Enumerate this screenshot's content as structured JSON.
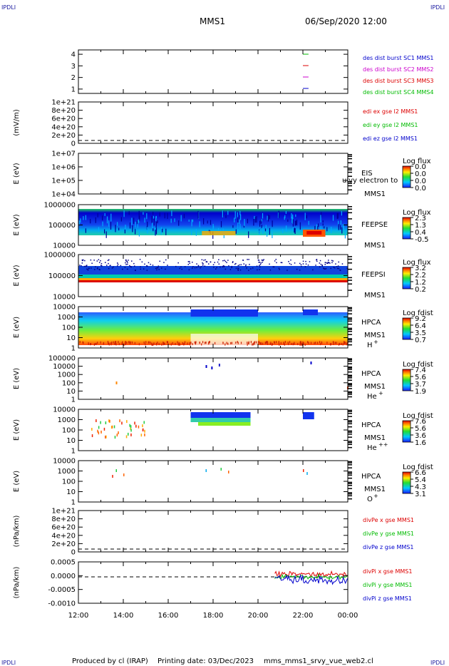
{
  "corners": {
    "tl": "IPDLI",
    "tr": "IPDLI",
    "bl": "IPDLI",
    "br": "IPDLI"
  },
  "header": {
    "mission": "MMS1",
    "datetime": "06/Sep/2020 12:00"
  },
  "footer": {
    "produced_by": "Produced by cl (IRAP)",
    "printing_date": "Printing date: 03/Dec/2023",
    "script": "mms_mms1_srvy_vue_web2.cl"
  },
  "chart_data": {
    "type": "stacked-panels",
    "x_axis": {
      "start": "12:00",
      "end": "00:00",
      "tick_labels": [
        "12:00",
        "14:00",
        "16:00",
        "18:00",
        "20:00",
        "22:00",
        "00:00"
      ]
    },
    "panels": [
      {
        "id": "burst",
        "type": "line",
        "ylabel": "",
        "y_ticks": [
          "4",
          "3",
          "2",
          "1"
        ],
        "legend": [
          {
            "text": "des dist burst SC1 MMS1",
            "color": "#0000cc"
          },
          {
            "text": "des dist burst SC2 MMS2",
            "color": "#cc00cc"
          },
          {
            "text": "des dist burst SC3 MMS3",
            "color": "#dd0000"
          },
          {
            "text": "des dist burst SC4 MMS4",
            "color": "#00bb00"
          }
        ],
        "segments": [
          {
            "sc": 4,
            "t_start": "22:00",
            "t_end": "22:15",
            "color": "#00bb00"
          },
          {
            "sc": 3,
            "t_start": "22:00",
            "t_end": "22:15",
            "color": "#dd0000"
          },
          {
            "sc": 2,
            "t_start": "22:00",
            "t_end": "22:15",
            "color": "#cc00cc"
          },
          {
            "sc": 1,
            "t_start": "22:00",
            "t_end": "22:15",
            "color": "#0000cc"
          }
        ]
      },
      {
        "id": "edi",
        "type": "line",
        "ylabel": "(mV/m)",
        "y_ticks": [
          "1e+21",
          "8e+20",
          "6e+20",
          "4e+20",
          "2e+20",
          "0"
        ],
        "legend": [
          {
            "text": "edi ex gse l2 MMS1",
            "color": "#dd0000"
          },
          {
            "text": "edi ey gse l2 MMS1",
            "color": "#00bb00"
          },
          {
            "text": "edi ez gse l2 MMS1",
            "color": "#0000cc"
          }
        ]
      },
      {
        "id": "eis",
        "type": "heatmap",
        "ylabel": "E (eV)",
        "y_ticks": [
          "1e+07",
          "1e+06",
          "1e+05",
          "1e+04"
        ],
        "side": [
          "EIS",
          "MMS1"
        ],
        "overlay_text": "ulvy electron to",
        "colorbar": {
          "title": "Log flux",
          "labels": [
            "0.0",
            "0.0",
            "0.0",
            "0.0"
          ]
        }
      },
      {
        "id": "feepse",
        "type": "heatmap",
        "ylabel": "E (eV)",
        "y_ticks": [
          "1000000",
          "100000",
          "10000"
        ],
        "side": [
          "FEEPSE",
          "MMS1"
        ],
        "colorbar": {
          "title": "Log flux",
          "labels": [
            "2.3",
            "1.3",
            "0.4",
            "-0.5"
          ]
        }
      },
      {
        "id": "feepsi",
        "type": "heatmap",
        "ylabel": "E (eV)",
        "y_ticks": [
          "1000000",
          "100000",
          "10000"
        ],
        "side": [
          "FEEPSI",
          "MMS1"
        ],
        "colorbar": {
          "title": "Log flux",
          "labels": [
            "3.2",
            "2.2",
            "1.2",
            "0.2"
          ]
        }
      },
      {
        "id": "hpca_h",
        "type": "heatmap",
        "ylabel": "E (eV)",
        "y_ticks": [
          "10000",
          "1000",
          "100",
          "10",
          "1"
        ],
        "side": [
          "HPCA",
          "MMS1"
        ],
        "species": "H",
        "charge": "+",
        "colorbar": {
          "title": "Log fdist",
          "labels": [
            "9.2",
            "6.4",
            "3.5",
            "0.7"
          ]
        }
      },
      {
        "id": "hpca_he",
        "type": "heatmap",
        "ylabel": "E (eV)",
        "y_ticks": [
          "100000",
          "10000",
          "1000",
          "100",
          "10",
          "1"
        ],
        "side": [
          "HPCA",
          "MMS1"
        ],
        "species": "He",
        "charge": "+",
        "colorbar": {
          "title": "Log fdist",
          "labels": [
            "7.4",
            "5.6",
            "3.7",
            "1.9"
          ]
        }
      },
      {
        "id": "hpca_he2",
        "type": "heatmap",
        "ylabel": "E (eV)",
        "y_ticks": [
          "10000",
          "1000",
          "100",
          "10",
          "1"
        ],
        "side": [
          "HPCA",
          "MMS1"
        ],
        "species": "He",
        "charge": "++",
        "colorbar": {
          "title": "Log fdist",
          "labels": [
            "7.6",
            "5.6",
            "3.6",
            "1.6"
          ]
        }
      },
      {
        "id": "hpca_o",
        "type": "heatmap",
        "ylabel": "E (eV)",
        "y_ticks": [
          "10000",
          "1000",
          "100",
          "10",
          "1"
        ],
        "side": [
          "HPCA",
          "MMS1"
        ],
        "species": "O",
        "charge": "+",
        "colorbar": {
          "title": "Log fdist",
          "labels": [
            "6.6",
            "5.4",
            "4.3",
            "3.1"
          ]
        }
      },
      {
        "id": "divpe",
        "type": "line",
        "ylabel": "(nPa/km)",
        "y_ticks": [
          "1e+21",
          "8e+20",
          "6e+20",
          "4e+20",
          "2e+20",
          "0"
        ],
        "legend": [
          {
            "text": "divPe x gse MMS1",
            "color": "#dd0000"
          },
          {
            "text": "divPe y gse MMS1",
            "color": "#00bb00"
          },
          {
            "text": "divPe z gse MMS1",
            "color": "#0000cc"
          }
        ]
      },
      {
        "id": "divpi",
        "type": "line",
        "ylabel": "(nPa/km)",
        "y_ticks": [
          "0.0005",
          "0.0000",
          "-0.0005",
          "-0.0010"
        ],
        "legend": [
          {
            "text": "divPi x gse MMS1",
            "color": "#dd0000"
          },
          {
            "text": "divPi y gse MMS1",
            "color": "#00bb00"
          },
          {
            "text": "divPi z gse MMS1",
            "color": "#0000cc"
          }
        ]
      }
    ]
  }
}
